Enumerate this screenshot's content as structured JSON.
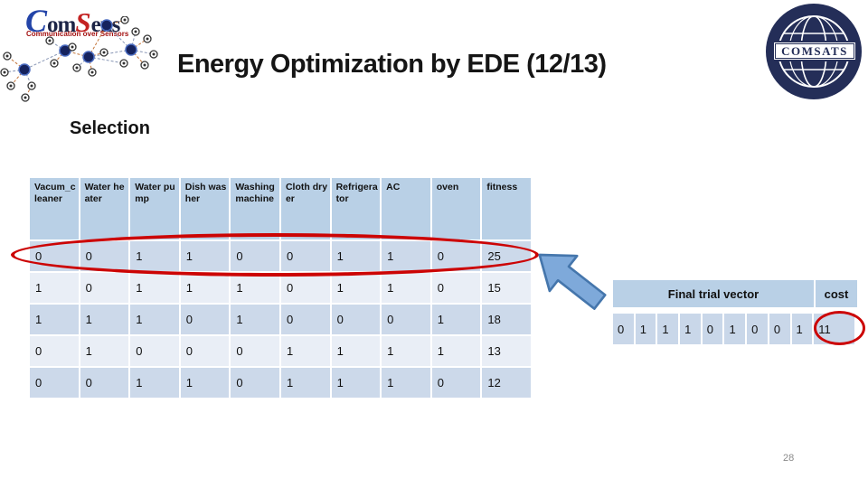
{
  "slide": {
    "title": "Energy Optimization by EDE (12/13)",
    "section_heading": "Selection",
    "page_number": "28"
  },
  "logos": {
    "comsens": {
      "wordmark_c": "C",
      "wordmark_om": "om",
      "wordmark_s": "S",
      "wordmark_ens": "ens",
      "tagline": "Communication over Sensors"
    },
    "comsats": {
      "label": "COMSATS"
    }
  },
  "appliance_table": {
    "headers": [
      "Vacum_cleaner",
      "Water heater",
      "Water pump",
      "Dish washer",
      "Washing machine",
      "Cloth dryer",
      "Refrigerator",
      "AC",
      "oven",
      "fitness"
    ],
    "rows": [
      [
        "0",
        "0",
        "1",
        "1",
        "0",
        "0",
        "1",
        "1",
        "0",
        "25"
      ],
      [
        "1",
        "0",
        "1",
        "1",
        "1",
        "0",
        "1",
        "1",
        "0",
        "15"
      ],
      [
        "1",
        "1",
        "1",
        "0",
        "1",
        "0",
        "0",
        "0",
        "1",
        "18"
      ],
      [
        "0",
        "1",
        "0",
        "0",
        "0",
        "1",
        "1",
        "1",
        "1",
        "13"
      ],
      [
        "0",
        "0",
        "1",
        "1",
        "0",
        "1",
        "1",
        "1",
        "0",
        "12"
      ]
    ],
    "highlighted_row_index": 0
  },
  "trial_vector_table": {
    "header_label": "Final trial vector",
    "cost_label": "cost",
    "values": [
      "0",
      "1",
      "1",
      "1",
      "0",
      "1",
      "0",
      "0",
      "1"
    ],
    "cost_value": "11"
  },
  "colors": {
    "header_bg": "#b9d0e6",
    "band_dark": "#ccd9ea",
    "band_light": "#e9eef6",
    "highlight_red": "#cc0404",
    "arrow_fill": "#7ea9da",
    "arrow_stroke": "#4576ac",
    "navy": "#242e58"
  }
}
